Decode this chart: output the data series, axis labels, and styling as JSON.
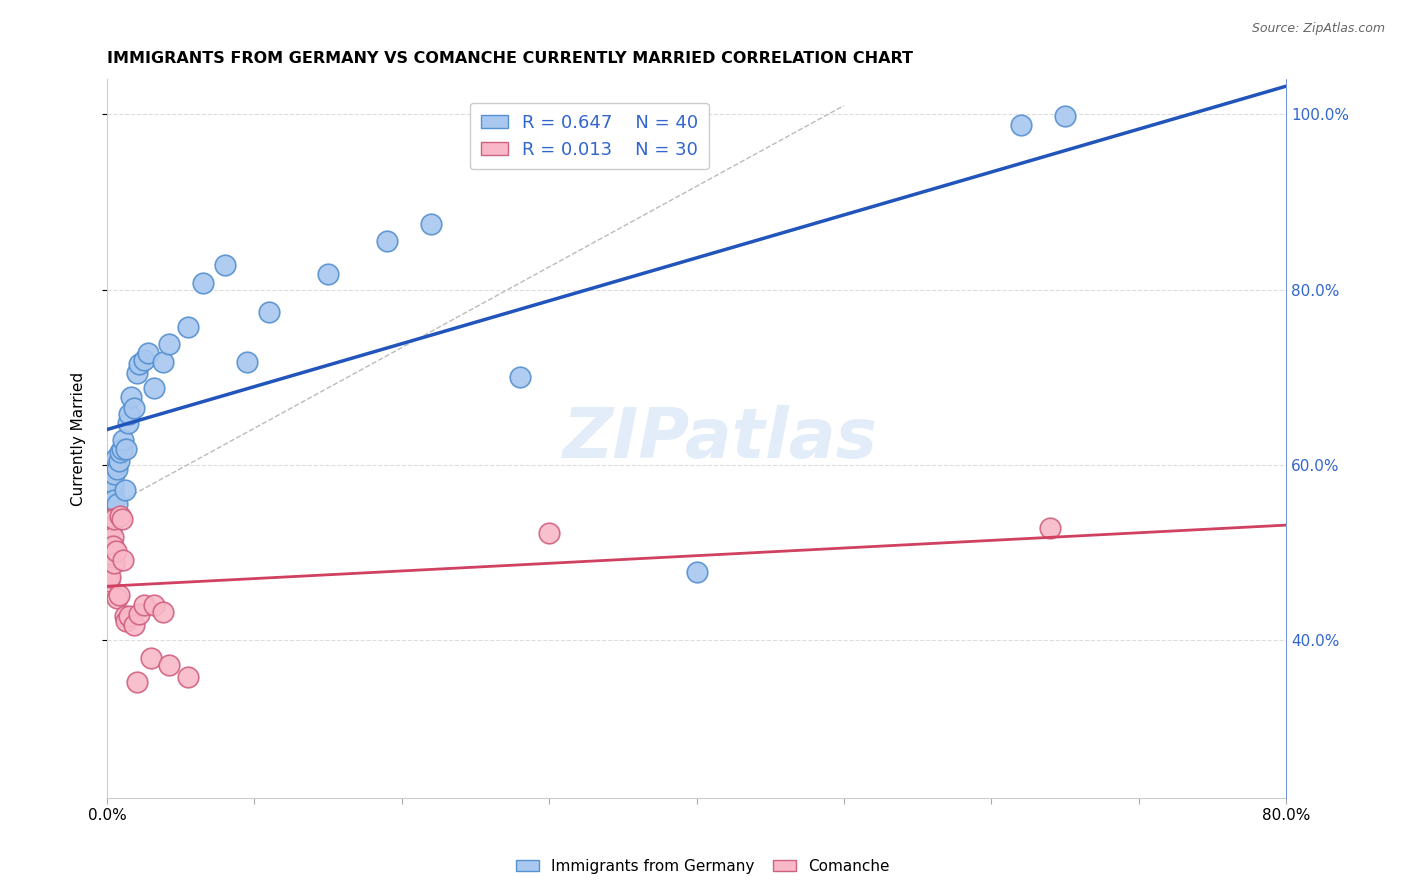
{
  "title": "IMMIGRANTS FROM GERMANY VS COMANCHE CURRENTLY MARRIED CORRELATION CHART",
  "source": "Source: ZipAtlas.com",
  "ylabel": "Currently Married",
  "color_blue": "#a8c8f0",
  "color_blue_edge": "#5590d0",
  "color_blue_line": "#2255bb",
  "color_pink": "#f8b8c8",
  "color_pink_edge": "#d06080",
  "color_pink_line": "#d04060",
  "color_legend_text": "#3366cc",
  "blue_x": [
    0.001,
    0.002,
    0.003,
    0.004,
    0.004,
    0.005,
    0.005,
    0.006,
    0.006,
    0.007,
    0.007,
    0.008,
    0.009,
    0.01,
    0.011,
    0.012,
    0.013,
    0.014,
    0.015,
    0.016,
    0.018,
    0.02,
    0.022,
    0.025,
    0.028,
    0.032,
    0.038,
    0.042,
    0.055,
    0.065,
    0.08,
    0.095,
    0.11,
    0.15,
    0.19,
    0.22,
    0.28,
    0.4,
    0.62,
    0.65
  ],
  "blue_y": [
    0.545,
    0.555,
    0.56,
    0.57,
    0.58,
    0.56,
    0.59,
    0.6,
    0.608,
    0.555,
    0.595,
    0.605,
    0.615,
    0.618,
    0.628,
    0.572,
    0.618,
    0.648,
    0.658,
    0.678,
    0.665,
    0.705,
    0.715,
    0.72,
    0.728,
    0.688,
    0.718,
    0.738,
    0.758,
    0.808,
    0.828,
    0.718,
    0.775,
    0.818,
    0.855,
    0.875,
    0.7,
    0.478,
    0.988,
    0.998
  ],
  "pink_x": [
    0.001,
    0.001,
    0.002,
    0.002,
    0.003,
    0.003,
    0.004,
    0.004,
    0.005,
    0.005,
    0.006,
    0.007,
    0.008,
    0.009,
    0.01,
    0.011,
    0.012,
    0.013,
    0.015,
    0.018,
    0.02,
    0.022,
    0.025,
    0.03,
    0.032,
    0.038,
    0.042,
    0.055,
    0.3,
    0.64
  ],
  "pink_y": [
    0.488,
    0.468,
    0.498,
    0.472,
    0.538,
    0.528,
    0.518,
    0.508,
    0.538,
    0.488,
    0.502,
    0.448,
    0.452,
    0.542,
    0.538,
    0.492,
    0.428,
    0.422,
    0.428,
    0.418,
    0.352,
    0.43,
    0.44,
    0.38,
    0.44,
    0.432,
    0.372,
    0.358,
    0.522,
    0.528
  ],
  "blue_line_x0": 0.0,
  "blue_line_x1": 0.8,
  "pink_line_x0": 0.0,
  "pink_line_x1": 0.8,
  "dash_line": [
    [
      0.0,
      0.5
    ],
    [
      0.55,
      1.01
    ]
  ],
  "xlim": [
    0.0,
    0.8
  ],
  "ylim": [
    0.22,
    1.04
  ],
  "yticks": [
    0.4,
    0.6,
    0.8,
    1.0
  ],
  "ytick_labels": [
    "40.0%",
    "60.0%",
    "80.0%",
    "100.0%"
  ],
  "xtick_labels_show": [
    "0.0%",
    "80.0%"
  ],
  "figsize": [
    14.06,
    8.92
  ],
  "dpi": 100
}
